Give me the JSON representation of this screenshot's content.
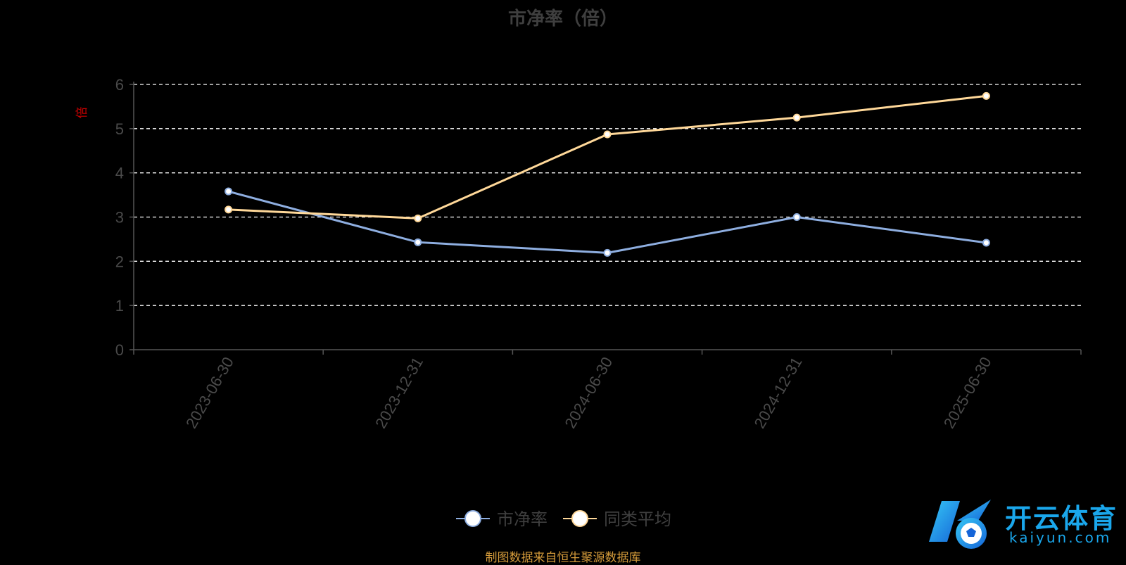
{
  "chart_data": {
    "type": "line",
    "title": "市净率（倍）",
    "ylabel": "倍",
    "categories": [
      "2023-06-30",
      "2023-12-31",
      "2024-06-30",
      "2024-12-31",
      "2025-06-30"
    ],
    "ylim": [
      0,
      6
    ],
    "yticks": [
      0,
      1,
      2,
      3,
      4,
      5,
      6
    ],
    "grid": true,
    "legend_position": "bottom",
    "series": [
      {
        "name": "市净率",
        "values": [
          3.58,
          2.43,
          2.19,
          3.0,
          2.42
        ],
        "color": "#8eaee0"
      },
      {
        "name": "同类平均",
        "values": [
          3.17,
          2.97,
          4.87,
          5.25,
          5.74
        ],
        "color": "#ffd899"
      }
    ]
  },
  "footer": {
    "source": "制图数据来自恒生聚源数据库"
  },
  "watermark": {
    "brand_cn": "开云体育",
    "brand_en": "kaiyun.com"
  },
  "colors": {
    "background": "#000000",
    "axis": "#555555",
    "grid": "#ffffff",
    "ylabel": "#cc0000",
    "source": "#d39a3a",
    "logo": "#1aa7ec"
  }
}
